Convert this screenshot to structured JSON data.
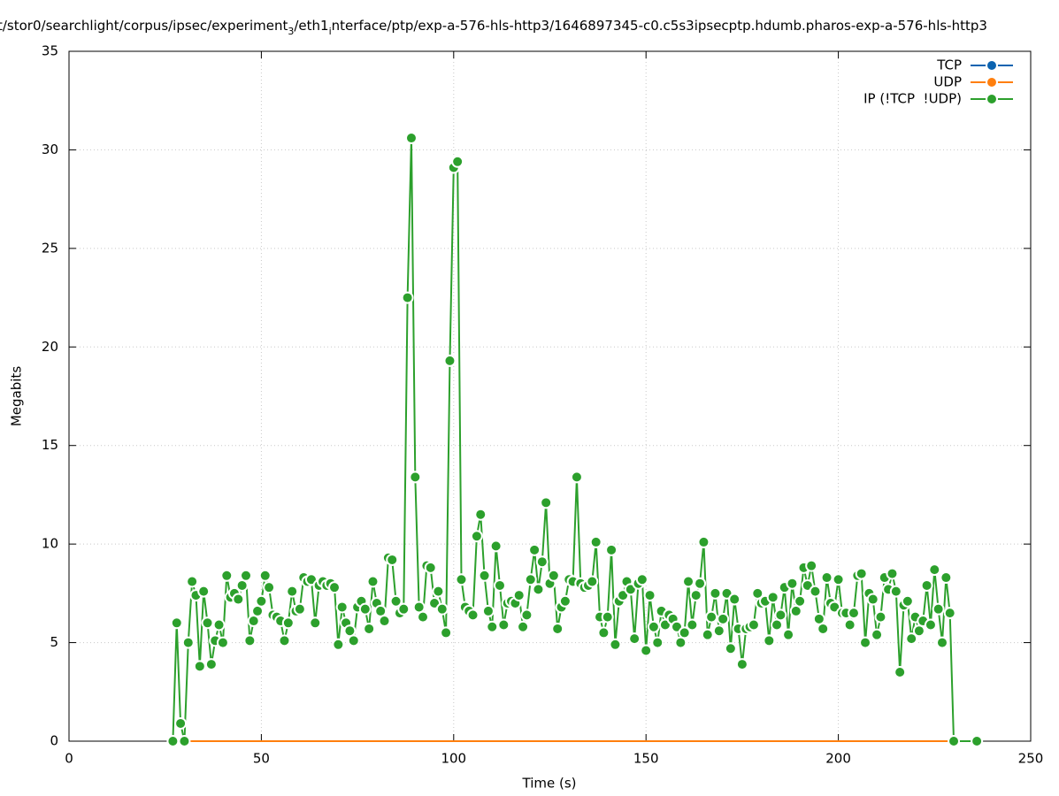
{
  "chart_data": {
    "type": "line",
    "title_parts": [
      "t/stor0/searchlight/corpus/ipsec/experiment",
      "3",
      "/eth1",
      "i",
      "nterface/ptp/exp-a-576-hls-http3/1646897345-c0.c5s3ipsecptp.hdumb.pharos-exp-a-576-hls-http3"
    ],
    "x_label": "Time (s)",
    "y_label": "Megabits",
    "xlim": [
      0,
      250
    ],
    "xticks": [
      0,
      50,
      100,
      150,
      200,
      250
    ],
    "ylim": [
      0,
      35
    ],
    "yticks": [
      0,
      5,
      10,
      15,
      20,
      25,
      30,
      35
    ],
    "grid": true,
    "legend": "top-right",
    "x": [
      27,
      28,
      29,
      30,
      31,
      32,
      33,
      34,
      35,
      36,
      37,
      38,
      39,
      40,
      41,
      42,
      43,
      44,
      45,
      46,
      47,
      48,
      49,
      50,
      51,
      52,
      53,
      54,
      55,
      56,
      57,
      58,
      59,
      60,
      61,
      62,
      63,
      64,
      65,
      66,
      67,
      68,
      69,
      70,
      71,
      72,
      73,
      74,
      75,
      76,
      77,
      78,
      79,
      80,
      81,
      82,
      83,
      84,
      85,
      86,
      87,
      88,
      89,
      90,
      91,
      92,
      93,
      94,
      95,
      96,
      97,
      98,
      99,
      100,
      101,
      102,
      103,
      104,
      105,
      106,
      107,
      108,
      109,
      110,
      111,
      112,
      113,
      114,
      115,
      116,
      117,
      118,
      119,
      120,
      121,
      122,
      123,
      124,
      125,
      126,
      127,
      128,
      129,
      130,
      131,
      132,
      133,
      134,
      135,
      136,
      137,
      138,
      139,
      140,
      141,
      142,
      143,
      144,
      145,
      146,
      147,
      148,
      149,
      150,
      151,
      152,
      153,
      154,
      155,
      156,
      157,
      158,
      159,
      160,
      161,
      162,
      163,
      164,
      165,
      166,
      167,
      168,
      169,
      170,
      171,
      172,
      173,
      174,
      175,
      176,
      177,
      178,
      179,
      180,
      181,
      182,
      183,
      184,
      185,
      186,
      187,
      188,
      189,
      190,
      191,
      192,
      193,
      194,
      195,
      196,
      197,
      198,
      199,
      200,
      201,
      202,
      203,
      204,
      205,
      206,
      207,
      208,
      209,
      210,
      211,
      212,
      213,
      214,
      215,
      216,
      217,
      218,
      219,
      220,
      221,
      222,
      223,
      224,
      225,
      226,
      227,
      228,
      229,
      230,
      236
    ],
    "series": [
      {
        "name": "TCP",
        "color": "#0b63b0",
        "markers": false,
        "values": [
          0,
          0,
          0,
          0,
          0,
          0,
          0,
          0,
          0,
          0,
          0,
          0,
          0,
          0,
          0,
          0,
          0,
          0,
          0,
          0,
          0,
          0,
          0,
          0,
          0,
          0,
          0,
          0,
          0,
          0,
          0,
          0,
          0,
          0,
          0,
          0,
          0,
          0,
          0,
          0,
          0,
          0,
          0,
          0,
          0,
          0,
          0,
          0,
          0,
          0,
          0,
          0,
          0,
          0,
          0,
          0,
          0,
          0,
          0,
          0,
          0,
          0,
          0,
          0,
          0,
          0,
          0,
          0,
          0,
          0,
          0,
          0,
          0,
          0,
          0,
          0,
          0,
          0,
          0,
          0,
          0,
          0,
          0,
          0,
          0,
          0,
          0,
          0,
          0,
          0,
          0,
          0,
          0,
          0,
          0,
          0,
          0,
          0,
          0,
          0,
          0,
          0,
          0,
          0,
          0,
          0,
          0,
          0,
          0,
          0,
          0,
          0,
          0,
          0,
          0,
          0,
          0,
          0,
          0,
          0,
          0,
          0,
          0,
          0,
          0,
          0,
          0,
          0,
          0,
          0,
          0,
          0,
          0,
          0,
          0,
          0,
          0,
          0,
          0,
          0,
          0,
          0,
          0,
          0,
          0,
          0,
          0,
          0,
          0,
          0,
          0,
          0,
          0,
          0,
          0,
          0,
          0,
          0,
          0,
          0,
          0,
          0,
          0,
          0,
          0,
          0,
          0,
          0,
          0,
          0,
          0,
          0,
          0,
          0,
          0,
          0,
          0,
          0,
          0,
          0,
          0,
          0,
          0,
          0,
          0,
          0,
          0,
          0,
          0,
          0,
          0,
          0,
          0,
          0,
          0,
          0,
          0,
          0,
          0,
          0,
          0,
          0,
          0,
          0,
          0
        ]
      },
      {
        "name": "UDP",
        "color": "#ff7f0e",
        "markers": false,
        "values": [
          0,
          0,
          0,
          0,
          0,
          0,
          0,
          0,
          0,
          0,
          0,
          0,
          0,
          0,
          0,
          0,
          0,
          0,
          0,
          0,
          0,
          0,
          0,
          0,
          0,
          0,
          0,
          0,
          0,
          0,
          0,
          0,
          0,
          0,
          0,
          0,
          0,
          0,
          0,
          0,
          0,
          0,
          0,
          0,
          0,
          0,
          0,
          0,
          0,
          0,
          0,
          0,
          0,
          0,
          0,
          0,
          0,
          0,
          0,
          0,
          0,
          0,
          0,
          0,
          0,
          0,
          0,
          0,
          0,
          0,
          0,
          0,
          0,
          0,
          0,
          0,
          0,
          0,
          0,
          0,
          0,
          0,
          0,
          0,
          0,
          0,
          0,
          0,
          0,
          0,
          0,
          0,
          0,
          0,
          0,
          0,
          0,
          0,
          0,
          0,
          0,
          0,
          0,
          0,
          0,
          0,
          0,
          0,
          0,
          0,
          0,
          0,
          0,
          0,
          0,
          0,
          0,
          0,
          0,
          0,
          0,
          0,
          0,
          0,
          0,
          0,
          0,
          0,
          0,
          0,
          0,
          0,
          0,
          0,
          0,
          0,
          0,
          0,
          0,
          0,
          0,
          0,
          0,
          0,
          0,
          0,
          0,
          0,
          0,
          0,
          0,
          0,
          0,
          0,
          0,
          0,
          0,
          0,
          0,
          0,
          0,
          0,
          0,
          0,
          0,
          0,
          0,
          0,
          0,
          0,
          0,
          0,
          0,
          0,
          0,
          0,
          0,
          0,
          0,
          0,
          0,
          0,
          0,
          0,
          0,
          0,
          0,
          0,
          0,
          0,
          0,
          0,
          0,
          0,
          0,
          0,
          0,
          0,
          0,
          0,
          0,
          0,
          0,
          0,
          0
        ]
      },
      {
        "name": "IP (!TCP  !UDP)",
        "color": "#2ca02c",
        "markers": true,
        "values": [
          0,
          6.0,
          0.9,
          0,
          5.0,
          8.1,
          7.4,
          3.8,
          7.6,
          6.0,
          3.9,
          5.1,
          5.9,
          5.0,
          8.4,
          7.3,
          7.5,
          7.2,
          7.9,
          8.4,
          5.1,
          6.1,
          6.6,
          7.1,
          8.4,
          7.8,
          6.4,
          6.3,
          6.1,
          5.1,
          6.0,
          7.6,
          6.6,
          6.7,
          8.3,
          8.1,
          8.2,
          6.0,
          7.9,
          8.1,
          7.9,
          8.0,
          7.8,
          4.9,
          6.8,
          6.0,
          5.6,
          5.1,
          6.8,
          7.1,
          6.7,
          5.7,
          8.1,
          7.0,
          6.6,
          6.1,
          9.3,
          9.2,
          7.1,
          6.5,
          6.7,
          22.5,
          30.6,
          13.4,
          6.8,
          6.3,
          8.9,
          8.8,
          7.0,
          7.6,
          6.7,
          5.5,
          19.3,
          29.1,
          29.4,
          8.2,
          6.8,
          6.6,
          6.4,
          10.4,
          11.5,
          8.4,
          6.6,
          5.8,
          9.9,
          7.9,
          5.9,
          7.0,
          7.1,
          7.0,
          7.4,
          5.8,
          6.4,
          8.2,
          9.7,
          7.7,
          9.1,
          12.1,
          8.0,
          8.4,
          5.7,
          6.8,
          7.1,
          8.2,
          8.1,
          13.4,
          8.0,
          7.8,
          7.9,
          8.1,
          10.1,
          6.3,
          5.5,
          6.3,
          9.7,
          4.9,
          7.1,
          7.4,
          8.1,
          7.7,
          5.2,
          8.0,
          8.2,
          4.6,
          7.4,
          5.8,
          5.0,
          6.6,
          5.9,
          6.4,
          6.2,
          5.8,
          5.0,
          5.5,
          8.1,
          5.9,
          7.4,
          8.0,
          10.1,
          5.4,
          6.3,
          7.5,
          5.6,
          6.2,
          7.5,
          4.7,
          7.2,
          5.7,
          3.9,
          5.7,
          5.8,
          5.9,
          7.5,
          7.0,
          7.1,
          5.1,
          7.3,
          5.9,
          6.4,
          7.8,
          5.4,
          8.0,
          6.6,
          7.1,
          8.8,
          7.9,
          8.9,
          7.6,
          6.2,
          5.7,
          8.3,
          7.0,
          6.8,
          8.2,
          6.5,
          6.5,
          5.9,
          6.5,
          8.4,
          8.5,
          5.0,
          7.5,
          7.2,
          5.4,
          6.3,
          8.3,
          7.7,
          8.5,
          7.6,
          3.5,
          6.9,
          7.1,
          5.2,
          6.3,
          5.6,
          6.1,
          7.9,
          5.9,
          8.7,
          6.7,
          5.0,
          8.3,
          6.5,
          0,
          0
        ]
      }
    ]
  }
}
